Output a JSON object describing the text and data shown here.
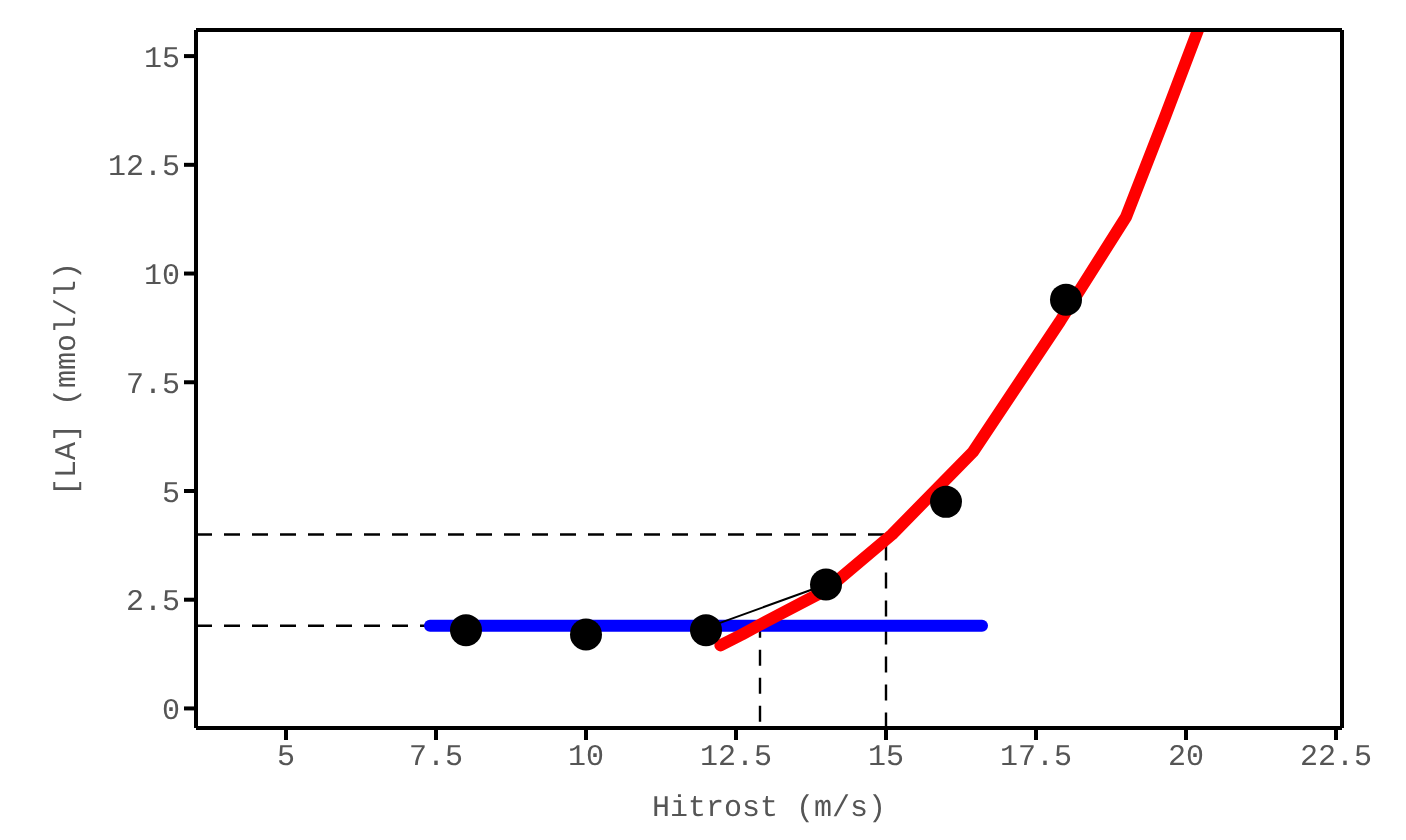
{
  "chart_data": {
    "type": "line",
    "xlabel": "Hitrost  (m/s)",
    "ylabel": "[LA] (mmol/l)",
    "xlim": [
      3.5,
      22.6
    ],
    "ylim": [
      -0.45,
      15.6
    ],
    "xticks": [
      5,
      7.5,
      10,
      12.5,
      15,
      17.5,
      20,
      22.5
    ],
    "yticks": [
      0,
      2.5,
      5,
      7.5,
      10,
      12.5,
      15
    ],
    "legend": false,
    "series": [
      {
        "type": "line",
        "color": "#000000",
        "line_style": "dashed",
        "marker": "none",
        "x": [
          3.5,
          15,
          15
        ],
        "values": [
          4.0,
          4.0,
          -0.45
        ]
      },
      {
        "type": "line",
        "color": "#000000",
        "line_style": "dashed",
        "marker": "none",
        "x": [
          3.5,
          12.9,
          12.9
        ],
        "values": [
          1.9,
          1.9,
          -0.45
        ]
      },
      {
        "color": "#0000ff",
        "line_style": "solid",
        "marker": "none",
        "x": [
          7.4,
          16.6
        ],
        "values": [
          1.9,
          1.9
        ]
      },
      {
        "type": "line",
        "color": "#000000",
        "line_style": "solid",
        "marker": "none",
        "x": [
          12.2,
          14.0
        ],
        "values": [
          1.95,
          2.85
        ]
      },
      {
        "type": "scatter",
        "color": "#000000",
        "marker": "circle",
        "x": [
          8,
          10,
          12,
          14,
          16,
          18
        ],
        "values": [
          1.8,
          1.7,
          1.8,
          2.85,
          4.75,
          9.4
        ]
      },
      {
        "color": "#ff0000",
        "line_style": "solid",
        "marker": "none",
        "x": [
          12.24,
          12.6,
          13.0,
          14.0,
          15.1,
          16.45,
          17.9,
          19.0,
          19.65,
          20.2
        ],
        "values": [
          1.45,
          1.7,
          2.0,
          2.72,
          4.0,
          5.9,
          8.9,
          11.3,
          13.6,
          15.6
        ]
      }
    ]
  }
}
